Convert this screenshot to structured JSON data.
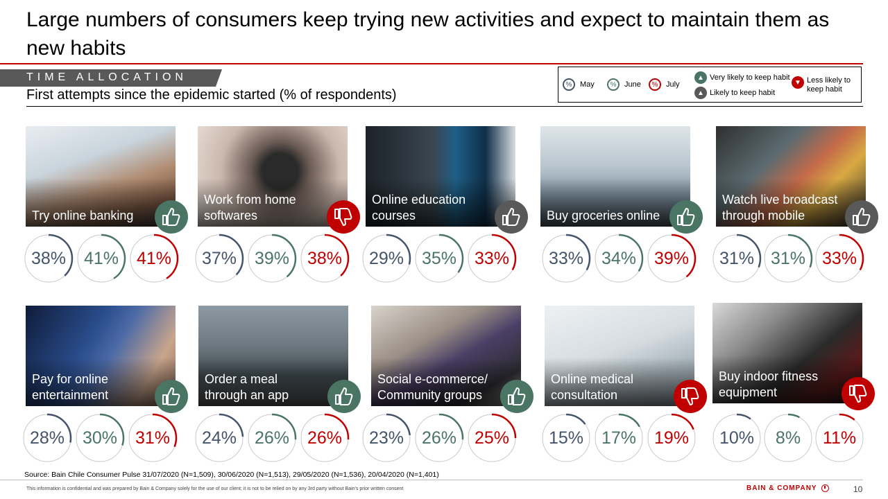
{
  "header": {
    "title": "Large numbers of consumers keep trying new activities and expect to maintain them as new habits",
    "section": "TIME ALLOCATION",
    "subtitle": "First attempts since the epidemic started (% of respondents)"
  },
  "legend": {
    "may": "May",
    "june": "June",
    "july": "July",
    "percent_glyph": "%",
    "very_likely": "Very likely to keep habit",
    "likely": "Likely to keep habit",
    "less_likely": "Less likely to keep habit"
  },
  "colors": {
    "may": "#44546a",
    "june": "#4a7565",
    "july": "#c00000",
    "ring_track": "#c8c8c8",
    "very_likely": "#4a7565",
    "likely": "#595959",
    "less_likely": "#c00000"
  },
  "chart_data": {
    "type": "donut",
    "series_names": [
      "May",
      "June",
      "July"
    ],
    "value_unit": "%",
    "categories": [
      {
        "label": "Try online banking",
        "values": [
          38,
          41,
          41
        ],
        "habit": "very-likely",
        "image": "banking-card-photo"
      },
      {
        "label": "Work from home softwares",
        "values": [
          37,
          39,
          38
        ],
        "habit": "less-likely",
        "image": "headset-photo"
      },
      {
        "label": "Online education courses",
        "values": [
          29,
          35,
          33
        ],
        "habit": "likely",
        "image": "computer-screen-photo"
      },
      {
        "label": "Buy groceries online",
        "values": [
          33,
          34,
          39
        ],
        "habit": "very-likely",
        "image": "shopping-carts-photo"
      },
      {
        "label": "Watch live broadcast through mobile",
        "values": [
          31,
          31,
          33
        ],
        "habit": "likely",
        "image": "phone-apps-photo"
      },
      {
        "label": "Pay for online entertainment",
        "values": [
          28,
          30,
          31
        ],
        "habit": "very-likely",
        "image": "tv-remote-photo"
      },
      {
        "label": "Order a meal through an app",
        "values": [
          24,
          26,
          26
        ],
        "habit": "very-likely",
        "image": "bike-courier-photo"
      },
      {
        "label": "Social e-commerce/ Community groups",
        "values": [
          23,
          26,
          25
        ],
        "habit": "very-likely",
        "image": "laptop-typing-photo"
      },
      {
        "label": "Online medical consultation",
        "values": [
          15,
          17,
          19
        ],
        "habit": "less-likely",
        "image": "doctor-laptop-photo"
      },
      {
        "label": "Buy indoor fitness equipment",
        "values": [
          10,
          8,
          11
        ],
        "habit": "less-likely",
        "image": "indoor-cycling-photo"
      }
    ]
  },
  "footer": {
    "source": "Source: Bain Chile Consumer Pulse 31/07/2020 (N=1,509), 30/06/2020 (N=1,513), 29/05/2020 (N=1,536), 20/04/2020 (N=1,401)",
    "confidential": "This information is confidential and was prepared by Bain & Company solely for the use of our client; it is not to be relied on by any 3rd party without Bain's prior written consent",
    "brand": "BAIN & COMPANY",
    "page_number": "10"
  }
}
